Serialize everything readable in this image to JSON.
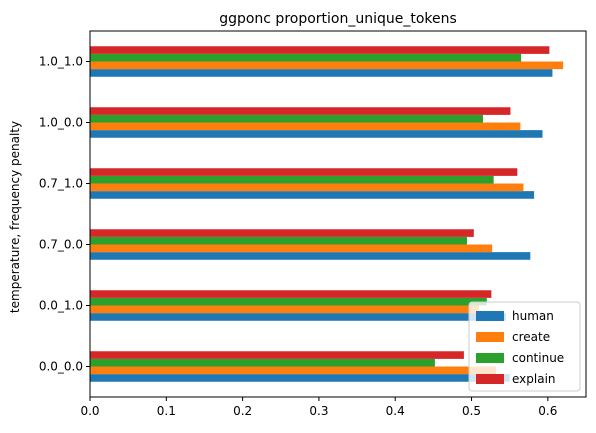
{
  "chart_data": {
    "type": "bar",
    "orientation": "horizontal",
    "title": "ggponc proportion_unique_tokens",
    "xlabel": "",
    "ylabel": "temperature, frequency penalty",
    "categories": [
      "0.0_0.0",
      "0.0_1.0",
      "0.7_0.0",
      "0.7_1.0",
      "1.0_0.0",
      "1.0_1.0"
    ],
    "xlim": [
      0,
      0.65
    ],
    "xticks": [
      "0.0",
      "0.1",
      "0.2",
      "0.3",
      "0.4",
      "0.5",
      "0.6"
    ],
    "grid": false,
    "legend_position": "lower-right",
    "series": [
      {
        "name": "human",
        "color": "#1f77b4",
        "values": [
          0.55,
          0.545,
          0.577,
          0.582,
          0.593,
          0.606
        ]
      },
      {
        "name": "create",
        "color": "#ff7f0e",
        "values": [
          0.532,
          0.51,
          0.527,
          0.568,
          0.564,
          0.62
        ]
      },
      {
        "name": "continue",
        "color": "#2ca02c",
        "values": [
          0.452,
          0.52,
          0.494,
          0.529,
          0.515,
          0.565
        ]
      },
      {
        "name": "explain",
        "color": "#d62728",
        "values": [
          0.49,
          0.526,
          0.503,
          0.56,
          0.551,
          0.602
        ]
      }
    ]
  }
}
